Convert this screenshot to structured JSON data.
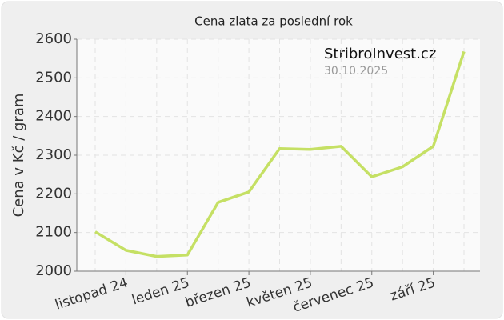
{
  "chart_data": {
    "type": "line",
    "title": "Cena zlata za poslední rok",
    "y_label": "Cena v Kč / gram",
    "annotations": [
      "StribroInvest.cz",
      "30.10.2025"
    ],
    "categories": [
      null,
      "listopad 24",
      null,
      "leden 25",
      null,
      "březen 25",
      null,
      "květen 25",
      null,
      "červenec 25",
      null,
      "září 25",
      null
    ],
    "series": [
      {
        "name": "Cena zlata",
        "color": "#c5e064",
        "values": [
          2102,
          2054,
          2038,
          2042,
          2178,
          2205,
          2317,
          2315,
          2323,
          2244,
          2270,
          2323,
          2568
        ]
      }
    ],
    "ylim": [
      2000,
      2600
    ],
    "yticks": [
      2000,
      2100,
      2200,
      2300,
      2400,
      2500,
      2600
    ],
    "grid": true
  }
}
